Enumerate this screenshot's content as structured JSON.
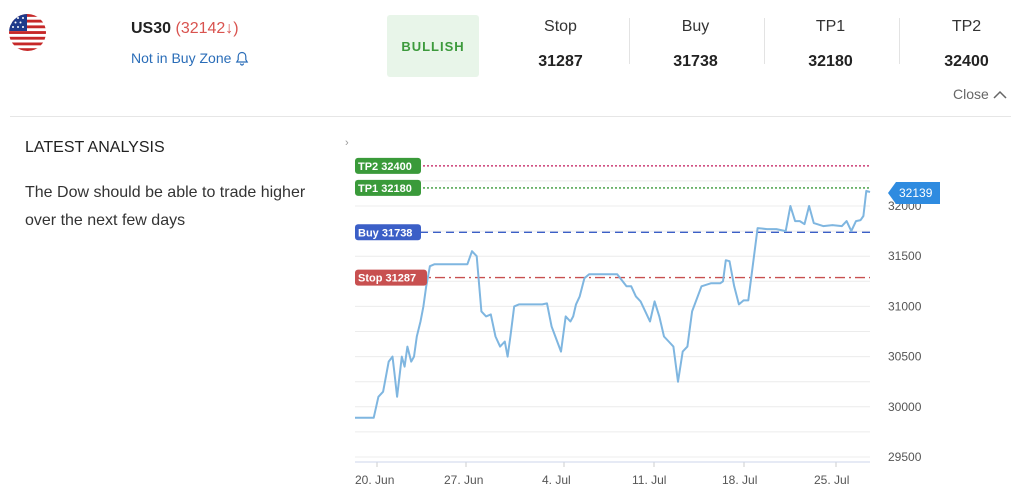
{
  "header": {
    "symbol": "US30",
    "price": "(32142↓)",
    "zone_status": "Not in Buy Zone",
    "sentiment": "BULLISH",
    "levels": [
      {
        "label": "Stop",
        "value": "31287"
      },
      {
        "label": "Buy",
        "value": "31738"
      },
      {
        "label": "TP1",
        "value": "32180"
      },
      {
        "label": "TP2",
        "value": "32400"
      }
    ],
    "close_label": "Close"
  },
  "analysis": {
    "title": "LATEST ANALYSIS",
    "text": "The Dow should be able to trade higher over the next few days"
  },
  "colors": {
    "sentiment_green": "#3c9a3c",
    "price_red": "#d9534f",
    "link_blue": "#2a6db8",
    "line": "#7fb6e0",
    "tp_green": "#3a9a3a",
    "buy_blue": "#3b5fc7",
    "stop_red": "#c85050",
    "tp2_line": "#c2185b"
  },
  "chart_data": {
    "type": "line",
    "x_tick_labels": [
      "20. Jun",
      "27. Jun",
      "4. Jul",
      "11. Jul",
      "18. Jul",
      "25. Jul"
    ],
    "y_tick_labels": [
      "29500",
      "30000",
      "30500",
      "31000",
      "31500",
      "32000"
    ],
    "ylim": [
      29500,
      32450
    ],
    "current_price_label": "32139",
    "current_price": 32139,
    "levels": [
      {
        "name": "TP2",
        "label": "TP2 32400",
        "value": 32400
      },
      {
        "name": "TP1",
        "label": "TP1 32180",
        "value": 32180
      },
      {
        "name": "Buy",
        "label": "Buy 31738",
        "value": 31738
      },
      {
        "name": "Stop",
        "label": "Stop 31287",
        "value": 31287
      }
    ],
    "series": [
      {
        "x": [
          0,
          1.5,
          2,
          2.5,
          3,
          3.3,
          3.6,
          4,
          4.2,
          4.5,
          5,
          5.3,
          5.6,
          6,
          6.3,
          6.6,
          7,
          7.3,
          7.6,
          8,
          8.5,
          9,
          10,
          11,
          12,
          12.5,
          13,
          13.5,
          14,
          14.5,
          15,
          15.5,
          16,
          16.3,
          16.6,
          17,
          17.5,
          18,
          18.5,
          19,
          19.5,
          20,
          20.5,
          21,
          22,
          22.5,
          23,
          23.3,
          23.6,
          24,
          24.5,
          25,
          26,
          27,
          28,
          29,
          29.5,
          30,
          30.5,
          31,
          31.5,
          32,
          32.5,
          33,
          33.5,
          34,
          34.5,
          35,
          35.5,
          36,
          37,
          38,
          38.5,
          39,
          39.3,
          39.6,
          40,
          40.5,
          41,
          41.5,
          42,
          43,
          44,
          45,
          46,
          46.5,
          47,
          47.5,
          48,
          48.5,
          49,
          50,
          51,
          52,
          52.5,
          53,
          53.5,
          54,
          54.3,
          54.6,
          55
        ],
        "y": [
          29890,
          29890,
          29890,
          30100,
          30150,
          30300,
          30450,
          30500,
          30350,
          30100,
          30500,
          30400,
          30600,
          30450,
          30500,
          30700,
          30850,
          31000,
          31200,
          31400,
          31420,
          31420,
          31420,
          31420,
          31420,
          31550,
          31500,
          30950,
          30900,
          30920,
          30700,
          30600,
          30650,
          30500,
          30700,
          31000,
          31020,
          31020,
          31020,
          31020,
          31020,
          31020,
          31030,
          30800,
          30550,
          30900,
          30850,
          30900,
          31020,
          31100,
          31280,
          31320,
          31320,
          31320,
          31320,
          31200,
          31200,
          31100,
          31050,
          30950,
          30850,
          31050,
          30900,
          30700,
          30650,
          30600,
          30250,
          30550,
          30600,
          30950,
          31200,
          31230,
          31230,
          31230,
          31250,
          31460,
          31450,
          31200,
          31020,
          31060,
          31060,
          31780,
          31770,
          31770,
          31750,
          32000,
          31850,
          31850,
          31820,
          32000,
          31830,
          31800,
          31810,
          31800,
          31850,
          31750,
          31850,
          31860,
          31900,
          32150,
          32139
        ]
      }
    ]
  }
}
